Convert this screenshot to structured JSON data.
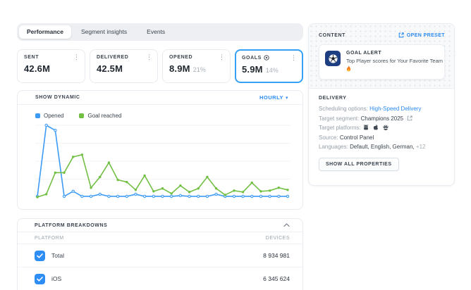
{
  "colors": {
    "accent_blue": "#2b8bf2",
    "line_blue": "#3d9bf5",
    "line_green": "#72bf44",
    "checkbox_blue": "#2f8df6",
    "goals_card_border": "#35a0f4",
    "alert_tile_navy": "#1e3e82"
  },
  "tabs": {
    "items": [
      {
        "label": "Performance",
        "active": true
      },
      {
        "label": "Segment insights",
        "active": false
      },
      {
        "label": "Events",
        "active": false
      }
    ]
  },
  "stats": [
    {
      "label": "SENT",
      "value": "42.6M",
      "percent": ""
    },
    {
      "label": "DELIVERED",
      "value": "42.5M",
      "percent": ""
    },
    {
      "label": "OPENED",
      "value": "8.9M",
      "percent": "21%"
    },
    {
      "label": "GOALS",
      "value": "5.9M",
      "percent": "14%"
    }
  ],
  "dynamic": {
    "title": "SHOW DYNAMIC",
    "range_label": "HOURLY",
    "legend": [
      {
        "label": "Opened"
      },
      {
        "label": "Goal reached"
      }
    ]
  },
  "chart_data": {
    "type": "line",
    "title": "SHOW DYNAMIC",
    "x_axis": "time (hourly buckets, unlabeled)",
    "ylim": [
      0,
      100
    ],
    "grid": true,
    "legend_position": "top-left",
    "series": [
      {
        "name": "Opened",
        "color": "#3d9bf5",
        "values": [
          1,
          100,
          93,
          1,
          8,
          1,
          1,
          4,
          1,
          1,
          1,
          4,
          1,
          1,
          1,
          1,
          2,
          1,
          1,
          1,
          4,
          1,
          1,
          1,
          1,
          1,
          1,
          1,
          1
        ]
      },
      {
        "name": "Goal reached",
        "color": "#72bf44",
        "values": [
          0,
          4,
          34,
          34,
          56,
          59,
          13,
          28,
          48,
          24,
          21,
          10,
          30,
          8,
          12,
          5,
          16,
          7,
          12,
          28,
          12,
          3,
          9,
          7,
          20,
          8,
          9,
          13,
          10
        ]
      }
    ]
  },
  "platform_breakdowns": {
    "title": "PLATFORM BREAKDOWNS",
    "columns": {
      "platform": "PLATFORM",
      "devices": "DEVICES"
    },
    "rows": [
      {
        "label": "Total",
        "devices": "8 934 981",
        "checked": true
      },
      {
        "label": "iOS",
        "devices": "6 345 624",
        "checked": true
      }
    ]
  },
  "content_panel": {
    "title": "CONTENT",
    "open_preset_label": "OPEN PRESET",
    "alert": {
      "title": "GOAL ALERT",
      "text": "Top Player scores for Your Favorite Team"
    },
    "delivery": {
      "title": "DELIVERY",
      "lines": [
        {
          "key": "Scheduling options:",
          "value": "High-Speed Delivery"
        },
        {
          "key": "Target segment:",
          "value": "Champions 2025"
        },
        {
          "key": "Target platforms:",
          "platforms": [
            "Android",
            "Apple",
            "Huawei"
          ]
        },
        {
          "key": "Source:",
          "value": "Control Panel"
        },
        {
          "key": "Languages:",
          "value": "Default, English, German,",
          "more": "+12"
        }
      ],
      "button_label": "SHOW ALL PROPERTIES"
    }
  }
}
